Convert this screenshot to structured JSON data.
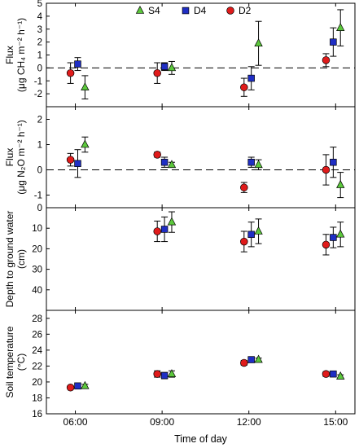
{
  "chart_data": [
    {
      "type": "scatter",
      "panel": "ch4",
      "ylabel_lines": [
        "Flux",
        "(μg CH₄ m⁻² h⁻¹)"
      ],
      "ylim": [
        -3,
        5
      ],
      "yticks": [
        -2,
        -1,
        0,
        1,
        2,
        3,
        4,
        5
      ],
      "zero_line": true,
      "series": [
        {
          "name": "S4",
          "marker": "triangle",
          "color": "#5cc83c",
          "points": [
            {
              "x": "06:20",
              "y": -1.5,
              "err": 0.9
            },
            {
              "x": "09:20",
              "y": 0.0,
              "err": 0.5
            },
            {
              "x": "12:20",
              "y": 1.9,
              "err": 1.7
            },
            {
              "x": "15:10",
              "y": 3.1,
              "err": 1.4
            }
          ]
        },
        {
          "name": "D4",
          "marker": "square",
          "color": "#1f2ec4",
          "points": [
            {
              "x": "06:05",
              "y": 0.3,
              "err": 0.5
            },
            {
              "x": "09:05",
              "y": 0.1,
              "err": 0.3
            },
            {
              "x": "12:05",
              "y": -0.8,
              "err": 0.9
            },
            {
              "x": "14:55",
              "y": 2.0,
              "err": 1.1
            }
          ]
        },
        {
          "name": "D2",
          "marker": "circle",
          "color": "#e01b1b",
          "points": [
            {
              "x": "05:50",
              "y": -0.4,
              "err": 0.8
            },
            {
              "x": "08:50",
              "y": -0.4,
              "err": 0.8
            },
            {
              "x": "11:50",
              "y": -1.5,
              "err": 0.7
            },
            {
              "x": "14:40",
              "y": 0.6,
              "err": 0.5
            }
          ]
        }
      ]
    },
    {
      "type": "scatter",
      "panel": "n2o",
      "ylabel_lines": [
        "Flux",
        "(μg N₂O m⁻² h⁻¹)"
      ],
      "ylim": [
        -1.5,
        2.5
      ],
      "yticks": [
        -1,
        0,
        1,
        2
      ],
      "zero_line": true,
      "series": [
        {
          "name": "S4",
          "marker": "triangle",
          "color": "#5cc83c",
          "points": [
            {
              "x": "06:20",
              "y": 1.0,
              "err": 0.3
            },
            {
              "x": "09:20",
              "y": 0.2,
              "err": 0.1
            },
            {
              "x": "12:20",
              "y": 0.2,
              "err": 0.2
            },
            {
              "x": "15:10",
              "y": -0.6,
              "err": 0.5
            }
          ]
        },
        {
          "name": "D4",
          "marker": "square",
          "color": "#1f2ec4",
          "points": [
            {
              "x": "06:05",
              "y": 0.25,
              "err": 0.55
            },
            {
              "x": "09:05",
              "y": 0.3,
              "err": 0.2
            },
            {
              "x": "12:05",
              "y": 0.3,
              "err": 0.2
            },
            {
              "x": "14:55",
              "y": 0.3,
              "err": 0.6
            }
          ]
        },
        {
          "name": "D2",
          "marker": "circle",
          "color": "#e01b1b",
          "points": [
            {
              "x": "05:50",
              "y": 0.4,
              "err": 0.25
            },
            {
              "x": "08:50",
              "y": 0.6,
              "err": 0.1
            },
            {
              "x": "11:50",
              "y": -0.7,
              "err": 0.2
            },
            {
              "x": "14:40",
              "y": 0.0,
              "err": 0.6
            }
          ]
        }
      ]
    },
    {
      "type": "scatter",
      "panel": "water",
      "ylabel_lines": [
        "Depth to ground water",
        "(cm)"
      ],
      "ylim": [
        0,
        50
      ],
      "inverted": true,
      "yticks": [
        0,
        10,
        20,
        30,
        40
      ],
      "series": [
        {
          "name": "S4",
          "marker": "triangle",
          "color": "#5cc83c",
          "points": [
            {
              "x": "09:20",
              "y": 7,
              "err": 5
            },
            {
              "x": "12:20",
              "y": 11.5,
              "err": 6
            },
            {
              "x": "15:10",
              "y": 13,
              "err": 6
            }
          ]
        },
        {
          "name": "D4",
          "marker": "square",
          "color": "#1f2ec4",
          "points": [
            {
              "x": "09:05",
              "y": 10.5,
              "err": 6
            },
            {
              "x": "12:05",
              "y": 13,
              "err": 6
            },
            {
              "x": "14:55",
              "y": 14.5,
              "err": 5
            }
          ]
        },
        {
          "name": "D2",
          "marker": "circle",
          "color": "#e01b1b",
          "points": [
            {
              "x": "08:50",
              "y": 11.5,
              "err": 5
            },
            {
              "x": "11:50",
              "y": 16.5,
              "err": 5
            },
            {
              "x": "14:40",
              "y": 18,
              "err": 5
            }
          ]
        }
      ]
    },
    {
      "type": "scatter",
      "panel": "temp",
      "ylabel_lines": [
        "Soil temperature",
        "(°C)"
      ],
      "ylim": [
        16,
        29
      ],
      "yticks": [
        16,
        18,
        20,
        22,
        24,
        26,
        28
      ],
      "series": [
        {
          "name": "S4",
          "marker": "triangle",
          "color": "#5cc83c",
          "points": [
            {
              "x": "06:20",
              "y": 19.5,
              "err": 0.2
            },
            {
              "x": "09:20",
              "y": 21.0,
              "err": 0.4
            },
            {
              "x": "12:20",
              "y": 22.8,
              "err": 0.2
            },
            {
              "x": "15:10",
              "y": 20.7,
              "err": 0.2
            }
          ]
        },
        {
          "name": "D4",
          "marker": "square",
          "color": "#1f2ec4",
          "points": [
            {
              "x": "06:05",
              "y": 19.5,
              "err": 0.2
            },
            {
              "x": "09:05",
              "y": 20.8,
              "err": 0.4
            },
            {
              "x": "12:05",
              "y": 22.8,
              "err": 0.2
            },
            {
              "x": "14:55",
              "y": 21.0,
              "err": 0.3
            }
          ]
        },
        {
          "name": "D2",
          "marker": "circle",
          "color": "#e01b1b",
          "points": [
            {
              "x": "05:50",
              "y": 19.3,
              "err": 0.2
            },
            {
              "x": "08:50",
              "y": 21.0,
              "err": 0.4
            },
            {
              "x": "11:50",
              "y": 22.4,
              "err": 0.3
            },
            {
              "x": "14:40",
              "y": 21.0,
              "err": 0.3
            }
          ]
        }
      ]
    }
  ],
  "x_axis": {
    "label": "Time of day",
    "xlim": [
      "05:00",
      "15:40"
    ],
    "ticks": [
      "06:00",
      "09:00",
      "12:00",
      "15:00"
    ]
  },
  "legend": {
    "placement": "top-center",
    "entries": [
      {
        "name": "S4",
        "marker": "triangle",
        "color": "#5cc83c"
      },
      {
        "name": "D4",
        "marker": "square",
        "color": "#1f2ec4"
      },
      {
        "name": "D2",
        "marker": "circle",
        "color": "#e01b1b"
      }
    ]
  }
}
